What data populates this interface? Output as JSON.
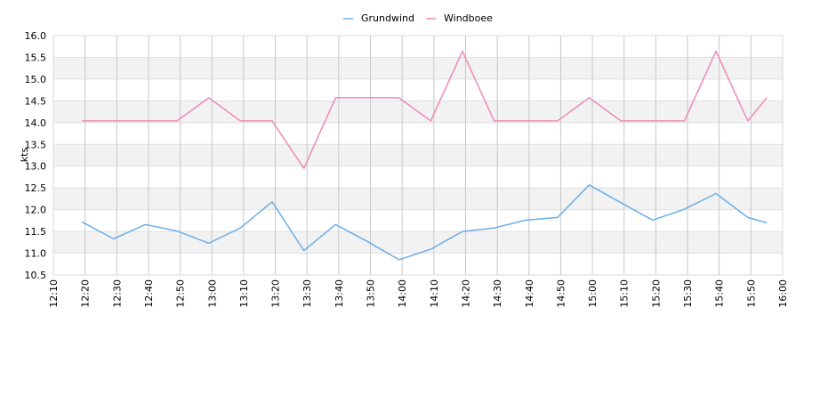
{
  "chart_data": {
    "type": "line",
    "ylabel": "kts",
    "ylim": [
      10.5,
      16.0
    ],
    "y_ticks": [
      "10.5",
      "11.0",
      "11.5",
      "12.0",
      "12.5",
      "13.0",
      "13.5",
      "14.0",
      "14.5",
      "15.0",
      "15.5",
      "16.0"
    ],
    "x_ticks": [
      "12:10",
      "12:20",
      "12:30",
      "12:40",
      "12:50",
      "13:00",
      "13:10",
      "13:20",
      "13:30",
      "13:40",
      "13:50",
      "14:00",
      "14:10",
      "14:20",
      "14:30",
      "14:40",
      "14:50",
      "15:00",
      "15:10",
      "15:20",
      "15:30",
      "15:40",
      "15:50",
      "16:00"
    ],
    "x_range": [
      "12:10",
      "16:00"
    ],
    "grid": true,
    "legend_position": "top-center",
    "series": [
      {
        "name": "Grundwind",
        "color": "#6aaeea",
        "x": [
          "12:19",
          "12:29",
          "12:39",
          "12:49",
          "12:59",
          "13:09",
          "13:19",
          "13:29",
          "13:39",
          "13:49",
          "13:59",
          "14:09",
          "14:19",
          "14:29",
          "14:39",
          "14:49",
          "14:59",
          "15:09",
          "15:19",
          "15:29",
          "15:39",
          "15:49",
          "15:55"
        ],
        "values": [
          11.72,
          11.33,
          11.66,
          11.51,
          11.23,
          11.58,
          12.18,
          11.06,
          11.66,
          11.27,
          10.85,
          11.09,
          11.5,
          11.58,
          11.76,
          11.82,
          12.57,
          12.16,
          11.76,
          12.01,
          12.37,
          11.82,
          11.7
        ]
      },
      {
        "name": "Windboee",
        "color": "#ee8ab8",
        "x": [
          "12:19",
          "12:29",
          "12:39",
          "12:49",
          "12:59",
          "13:09",
          "13:19",
          "13:29",
          "13:39",
          "13:49",
          "13:59",
          "14:09",
          "14:19",
          "14:29",
          "14:39",
          "14:49",
          "14:59",
          "15:09",
          "15:19",
          "15:29",
          "15:39",
          "15:49",
          "15:55"
        ],
        "values": [
          14.04,
          14.04,
          14.04,
          14.04,
          14.57,
          14.04,
          14.04,
          12.95,
          14.57,
          14.57,
          14.57,
          14.04,
          15.64,
          14.04,
          14.04,
          14.04,
          14.57,
          14.04,
          14.04,
          14.04,
          15.64,
          14.04,
          14.57
        ]
      }
    ]
  }
}
